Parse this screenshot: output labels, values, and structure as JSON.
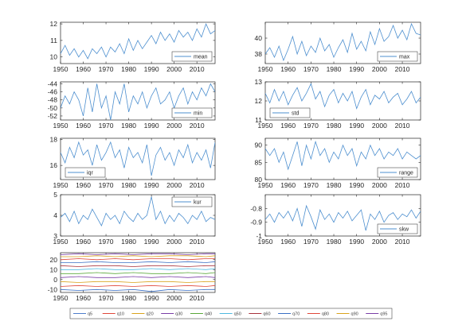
{
  "chart_data": [
    {
      "type": "line",
      "legend": "mean",
      "legend_loc": "bottom-right",
      "xlim": [
        1950,
        2018
      ],
      "ylim": [
        9.6,
        12.1
      ],
      "yticks": [
        10,
        11,
        12
      ],
      "xticks": [
        1950,
        1960,
        1970,
        1980,
        1990,
        2000,
        2010
      ],
      "x": [
        1950,
        1952,
        1954,
        1956,
        1958,
        1960,
        1962,
        1964,
        1966,
        1968,
        1970,
        1972,
        1974,
        1976,
        1978,
        1980,
        1982,
        1984,
        1986,
        1988,
        1990,
        1992,
        1994,
        1996,
        1998,
        2000,
        2002,
        2004,
        2006,
        2008,
        2010,
        2012,
        2014,
        2016,
        2018
      ],
      "values": [
        10.2,
        10.7,
        10.1,
        10.5,
        10.0,
        10.4,
        9.9,
        10.5,
        10.2,
        10.6,
        10.0,
        10.6,
        10.3,
        10.8,
        10.2,
        11.1,
        10.4,
        11.0,
        10.5,
        10.9,
        11.3,
        10.8,
        11.5,
        11.0,
        11.4,
        10.9,
        11.6,
        11.2,
        11.5,
        11.0,
        11.7,
        11.2,
        12.0,
        11.4,
        11.6
      ],
      "color": "#4d8fcf"
    },
    {
      "type": "line",
      "legend": "max",
      "legend_loc": "bottom-right",
      "xlim": [
        1950,
        2018
      ],
      "ylim": [
        36.8,
        42.0
      ],
      "yticks": [
        38,
        40
      ],
      "xticks": [
        1950,
        1960,
        1970,
        1980,
        1990,
        2000,
        2010
      ],
      "x": [
        1950,
        1952,
        1954,
        1956,
        1958,
        1960,
        1962,
        1964,
        1966,
        1968,
        1970,
        1972,
        1974,
        1976,
        1978,
        1980,
        1982,
        1984,
        1986,
        1988,
        1990,
        1992,
        1994,
        1996,
        1998,
        2000,
        2002,
        2004,
        2006,
        2008,
        2010,
        2012,
        2014,
        2016,
        2018
      ],
      "values": [
        38.0,
        38.8,
        37.6,
        39.0,
        37.2,
        38.6,
        40.2,
        38.0,
        39.6,
        37.8,
        39.0,
        38.2,
        40.0,
        38.4,
        39.2,
        37.6,
        38.8,
        39.8,
        38.2,
        40.6,
        38.6,
        39.6,
        38.4,
        40.8,
        39.2,
        41.2,
        39.6,
        40.2,
        41.6,
        40.0,
        41.0,
        39.8,
        41.8,
        40.6,
        40.4
      ],
      "color": "#4d8fcf"
    },
    {
      "type": "line",
      "legend": "min",
      "legend_loc": "bottom-right",
      "xlim": [
        1950,
        2018
      ],
      "ylim": [
        -53,
        -43.5
      ],
      "yticks": [
        -44,
        -46,
        -48,
        -50,
        -52
      ],
      "xticks": [
        1950,
        1960,
        1970,
        1980,
        1990,
        2000,
        2010
      ],
      "x": [
        1950,
        1952,
        1954,
        1956,
        1958,
        1960,
        1962,
        1964,
        1966,
        1968,
        1970,
        1972,
        1974,
        1976,
        1978,
        1980,
        1982,
        1984,
        1986,
        1988,
        1990,
        1992,
        1994,
        1996,
        1998,
        2000,
        2002,
        2004,
        2006,
        2008,
        2010,
        2012,
        2014,
        2016,
        2018
      ],
      "values": [
        -50,
        -47,
        -49,
        -46,
        -48,
        -52,
        -45,
        -51,
        -44,
        -50,
        -47,
        -53,
        -46,
        -49,
        -44,
        -51,
        -47,
        -49,
        -46,
        -50,
        -47,
        -45,
        -49,
        -48,
        -46,
        -50,
        -47,
        -45,
        -49,
        -46,
        -48,
        -45,
        -47,
        -44,
        -46
      ],
      "color": "#4d8fcf"
    },
    {
      "type": "line",
      "legend": "std",
      "legend_loc": "bottom-left",
      "xlim": [
        1950,
        2018
      ],
      "ylim": [
        11,
        13
      ],
      "yticks": [
        11,
        12,
        13
      ],
      "xticks": [
        1950,
        1960,
        1970,
        1980,
        1990,
        2000,
        2010
      ],
      "x": [
        1950,
        1952,
        1954,
        1956,
        1958,
        1960,
        1962,
        1964,
        1966,
        1968,
        1970,
        1972,
        1974,
        1976,
        1978,
        1980,
        1982,
        1984,
        1986,
        1988,
        1990,
        1992,
        1994,
        1996,
        1998,
        2000,
        2002,
        2004,
        2006,
        2008,
        2010,
        2012,
        2014,
        2016,
        2018
      ],
      "values": [
        12.4,
        11.9,
        12.6,
        12.0,
        12.5,
        11.8,
        12.3,
        12.7,
        12.0,
        12.4,
        12.9,
        12.1,
        12.5,
        11.7,
        12.3,
        12.6,
        11.9,
        12.4,
        12.0,
        12.5,
        11.6,
        12.2,
        12.6,
        11.8,
        12.3,
        12.1,
        12.5,
        11.9,
        12.2,
        12.4,
        11.8,
        12.1,
        12.5,
        11.9,
        12.2
      ],
      "color": "#4d8fcf"
    },
    {
      "type": "line",
      "legend": "iqr",
      "legend_loc": "bottom-left",
      "xlim": [
        1950,
        2018
      ],
      "ylim": [
        14.9,
        18.1
      ],
      "yticks": [
        16,
        18
      ],
      "xticks": [
        1950,
        1960,
        1970,
        1980,
        1990,
        2000,
        2010
      ],
      "x": [
        1950,
        1952,
        1954,
        1956,
        1958,
        1960,
        1962,
        1964,
        1966,
        1968,
        1970,
        1972,
        1974,
        1976,
        1978,
        1980,
        1982,
        1984,
        1986,
        1988,
        1990,
        1992,
        1994,
        1996,
        1998,
        2000,
        2002,
        2004,
        2006,
        2008,
        2010,
        2012,
        2014,
        2016,
        2018
      ],
      "values": [
        17.0,
        16.2,
        17.4,
        16.6,
        17.8,
        16.8,
        17.2,
        16.0,
        17.6,
        16.4,
        17.0,
        17.8,
        16.6,
        17.2,
        15.8,
        17.4,
        16.6,
        17.0,
        16.2,
        17.6,
        15.2,
        16.8,
        17.4,
        16.4,
        17.0,
        16.0,
        17.2,
        16.6,
        17.6,
        16.2,
        17.0,
        16.4,
        17.2,
        15.8,
        17.8
      ],
      "color": "#4d8fcf"
    },
    {
      "type": "line",
      "legend": "range",
      "legend_loc": "bottom-right",
      "xlim": [
        1950,
        2018
      ],
      "ylim": [
        80,
        92
      ],
      "yticks": [
        80,
        85,
        90
      ],
      "xticks": [
        1950,
        1960,
        1970,
        1980,
        1990,
        2000,
        2010
      ],
      "x": [
        1950,
        1952,
        1954,
        1956,
        1958,
        1960,
        1962,
        1964,
        1966,
        1968,
        1970,
        1972,
        1974,
        1976,
        1978,
        1980,
        1982,
        1984,
        1986,
        1988,
        1990,
        1992,
        1994,
        1996,
        1998,
        2000,
        2002,
        2004,
        2006,
        2008,
        2010,
        2012,
        2014,
        2016,
        2018
      ],
      "values": [
        89,
        87,
        89,
        85,
        88,
        83,
        87,
        91,
        84,
        90,
        86,
        91,
        87,
        89,
        85,
        88,
        86,
        90,
        87,
        89,
        84,
        88,
        86,
        90,
        87,
        89,
        86,
        88,
        87,
        89,
        86,
        88,
        87,
        86,
        87
      ],
      "color": "#4d8fcf"
    },
    {
      "type": "line",
      "legend": "kur",
      "legend_loc": "top-right",
      "xlim": [
        1950,
        2018
      ],
      "ylim": [
        3,
        5
      ],
      "yticks": [
        3,
        4,
        5
      ],
      "xticks": [
        1950,
        1960,
        1970,
        1980,
        1990,
        2000,
        2010
      ],
      "x": [
        1950,
        1952,
        1954,
        1956,
        1958,
        1960,
        1962,
        1964,
        1966,
        1968,
        1970,
        1972,
        1974,
        1976,
        1978,
        1980,
        1982,
        1984,
        1986,
        1988,
        1990,
        1992,
        1994,
        1996,
        1998,
        2000,
        2002,
        2004,
        2006,
        2008,
        2010,
        2012,
        2014,
        2016,
        2018
      ],
      "values": [
        3.9,
        4.1,
        3.7,
        4.2,
        3.6,
        4.0,
        3.8,
        4.3,
        3.9,
        3.5,
        4.1,
        3.8,
        4.0,
        3.6,
        4.2,
        3.9,
        3.7,
        4.1,
        3.8,
        4.0,
        4.9,
        3.8,
        4.2,
        3.6,
        4.0,
        3.7,
        4.1,
        3.9,
        3.6,
        4.0,
        3.8,
        4.2,
        3.7,
        3.9,
        3.8
      ],
      "color": "#4d8fcf"
    },
    {
      "type": "line",
      "legend": "skw",
      "legend_loc": "bottom-right",
      "xlim": [
        1950,
        2018
      ],
      "ylim": [
        -1,
        -0.7
      ],
      "yticks": [
        -0.8,
        -0.9,
        -1
      ],
      "xticks": [
        1950,
        1960,
        1970,
        1980,
        1990,
        2000,
        2010
      ],
      "x": [
        1950,
        1952,
        1954,
        1956,
        1958,
        1960,
        1962,
        1964,
        1966,
        1968,
        1970,
        1972,
        1974,
        1976,
        1978,
        1980,
        1982,
        1984,
        1986,
        1988,
        1990,
        1992,
        1994,
        1996,
        1998,
        2000,
        2002,
        2004,
        2006,
        2008,
        2010,
        2012,
        2014,
        2016,
        2018
      ],
      "values": [
        -0.88,
        -0.84,
        -0.9,
        -0.83,
        -0.87,
        -0.82,
        -0.89,
        -0.8,
        -0.93,
        -0.78,
        -0.86,
        -0.95,
        -0.81,
        -0.88,
        -0.84,
        -0.9,
        -0.83,
        -0.87,
        -0.82,
        -0.89,
        -0.85,
        -0.81,
        -0.96,
        -0.84,
        -0.88,
        -0.82,
        -0.9,
        -0.85,
        -0.83,
        -0.88,
        -0.84,
        -0.86,
        -0.81,
        -0.87,
        -0.82
      ],
      "color": "#4d8fcf"
    },
    {
      "type": "line",
      "xlim": [
        1950,
        2018
      ],
      "ylim": [
        -13,
        27
      ],
      "yticks": [
        20,
        10,
        0,
        -10
      ],
      "xticks": [
        1950,
        1960,
        1970,
        1980,
        1990,
        2000,
        2010
      ],
      "x": [
        1950,
        1958,
        1966,
        1974,
        1982,
        1990,
        1998,
        2006,
        2014,
        2018
      ],
      "series": [
        {
          "name": "q5",
          "values": [
            -10,
            -11,
            -10,
            -11,
            -10,
            -12,
            -10,
            -11,
            -10,
            -10
          ],
          "color": "#3a6fc4"
        },
        {
          "name": "q10",
          "values": [
            -7,
            -6,
            -7,
            -6,
            -7,
            -6,
            -7,
            -6,
            -7,
            -6
          ],
          "color": "#e0473a"
        },
        {
          "name": "q20",
          "values": [
            -2,
            -3,
            -2,
            -2,
            -3,
            -2,
            -2,
            -3,
            -2,
            -2
          ],
          "color": "#d9a21c"
        },
        {
          "name": "q30",
          "values": [
            2,
            3,
            2,
            2,
            3,
            2,
            3,
            2,
            3,
            2
          ],
          "color": "#7a3ea6"
        },
        {
          "name": "q40",
          "values": [
            6,
            6,
            7,
            6,
            7,
            6,
            6,
            7,
            6,
            7
          ],
          "color": "#5aa83a"
        },
        {
          "name": "q50",
          "values": [
            10,
            10,
            11,
            10,
            10,
            11,
            10,
            11,
            10,
            11
          ],
          "color": "#4fb9e0"
        },
        {
          "name": "q60",
          "values": [
            14,
            13,
            14,
            14,
            13,
            14,
            14,
            13,
            14,
            14
          ],
          "color": "#a8323c"
        },
        {
          "name": "q70",
          "values": [
            17,
            17,
            18,
            17,
            17,
            18,
            17,
            18,
            17,
            18
          ],
          "color": "#3a6fc4"
        },
        {
          "name": "q80",
          "values": [
            20,
            21,
            20,
            21,
            20,
            21,
            21,
            20,
            21,
            21
          ],
          "color": "#e0473a"
        },
        {
          "name": "q90",
          "values": [
            23,
            23,
            24,
            23,
            24,
            23,
            24,
            24,
            23,
            24
          ],
          "color": "#d9a21c"
        },
        {
          "name": "q95",
          "values": [
            25,
            26,
            25,
            26,
            25,
            26,
            26,
            25,
            26,
            26
          ],
          "color": "#7a3ea6"
        }
      ]
    }
  ]
}
